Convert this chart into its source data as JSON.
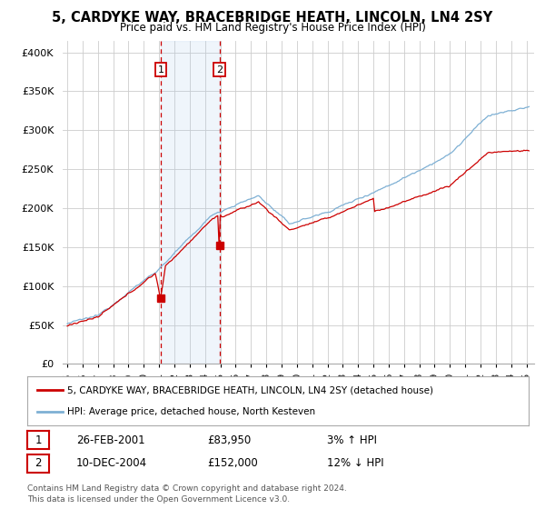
{
  "title": "5, CARDYKE WAY, BRACEBRIDGE HEATH, LINCOLN, LN4 2SY",
  "subtitle": "Price paid vs. HM Land Registry's House Price Index (HPI)",
  "title_fontsize": 10.5,
  "subtitle_fontsize": 8.5,
  "ylabel_ticks": [
    "£0",
    "£50K",
    "£100K",
    "£150K",
    "£200K",
    "£250K",
    "£300K",
    "£350K",
    "£400K"
  ],
  "ytick_values": [
    0,
    50000,
    100000,
    150000,
    200000,
    250000,
    300000,
    350000,
    400000
  ],
  "ylim": [
    0,
    415000
  ],
  "sale1_date": 2001.12,
  "sale1_price": 83950,
  "sale2_date": 2004.95,
  "sale2_price": 152000,
  "sale_line_color": "#cc0000",
  "line_color_property": "#cc0000",
  "line_color_hpi": "#7eb0d4",
  "legend_label_property": "5, CARDYKE WAY, BRACEBRIDGE HEATH, LINCOLN, LN4 2SY (detached house)",
  "legend_label_hpi": "HPI: Average price, detached house, North Kesteven",
  "table_row1": [
    "1",
    "26-FEB-2001",
    "£83,950",
    "3% ↑ HPI"
  ],
  "table_row2": [
    "2",
    "10-DEC-2004",
    "£152,000",
    "12% ↓ HPI"
  ],
  "footer1": "Contains HM Land Registry data © Crown copyright and database right 2024.",
  "footer2": "This data is licensed under the Open Government Licence v3.0.",
  "background_color": "#ffffff",
  "grid_color": "#cccccc"
}
